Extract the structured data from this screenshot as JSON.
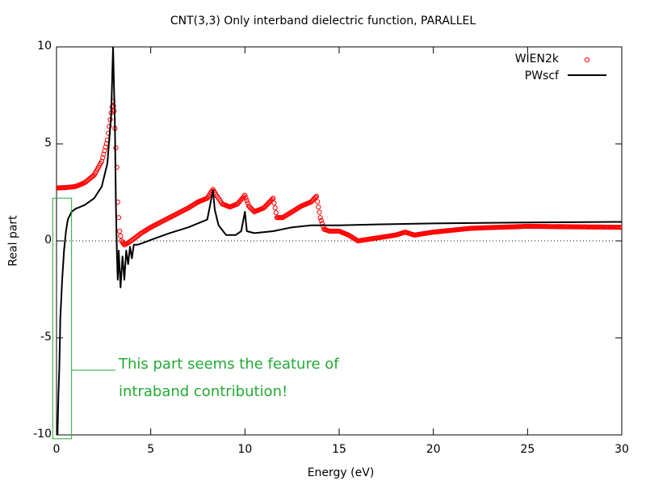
{
  "chart_data": {
    "type": "line",
    "title": "CNT(3,3) Only interband dielectric function, PARALLEL",
    "xlabel": "Energy (eV)",
    "ylabel": "Real part",
    "xlim": [
      0,
      30
    ],
    "ylim": [
      -10,
      10
    ],
    "xticks": [
      "0",
      "5",
      "10",
      "15",
      "20",
      "25",
      "30"
    ],
    "yticks": [
      "-10",
      "-5",
      "0",
      "5",
      "10"
    ],
    "grid": false,
    "zero_line": "dotted",
    "legend_position": "top-right",
    "series": [
      {
        "name": "WIEN2k",
        "style": "markers-open-circle",
        "color": "#ff0000",
        "points": [
          [
            -0.1,
            2.72
          ],
          [
            0.5,
            2.75
          ],
          [
            1.0,
            2.8
          ],
          [
            1.5,
            3.0
          ],
          [
            2.0,
            3.4
          ],
          [
            2.4,
            4.1
          ],
          [
            2.7,
            5.2
          ],
          [
            2.9,
            6.6
          ],
          [
            3.0,
            7.2
          ],
          [
            3.06,
            6.7
          ],
          [
            3.1,
            5.8
          ],
          [
            3.15,
            4.8
          ],
          [
            3.2,
            3.8
          ],
          [
            3.25,
            2.0
          ],
          [
            3.3,
            1.2
          ],
          [
            3.35,
            0.5
          ],
          [
            3.45,
            0.0
          ],
          [
            3.6,
            -0.2
          ],
          [
            3.8,
            -0.1
          ],
          [
            4.1,
            0.1
          ],
          [
            4.5,
            0.4
          ],
          [
            5.0,
            0.7
          ],
          [
            6.0,
            1.2
          ],
          [
            7.0,
            1.7
          ],
          [
            7.5,
            2.0
          ],
          [
            8.0,
            2.2
          ],
          [
            8.3,
            2.65
          ],
          [
            8.45,
            2.4
          ],
          [
            8.8,
            1.9
          ],
          [
            9.2,
            1.75
          ],
          [
            9.6,
            1.9
          ],
          [
            10.0,
            2.35
          ],
          [
            10.2,
            1.8
          ],
          [
            10.5,
            1.5
          ],
          [
            11.0,
            1.7
          ],
          [
            11.5,
            2.2
          ],
          [
            11.7,
            1.2
          ],
          [
            12.0,
            1.2
          ],
          [
            12.5,
            1.5
          ],
          [
            13.0,
            1.8
          ],
          [
            13.5,
            2.0
          ],
          [
            13.8,
            2.3
          ],
          [
            14.0,
            1.2
          ],
          [
            14.2,
            0.6
          ],
          [
            14.5,
            0.5
          ],
          [
            15.0,
            0.5
          ],
          [
            15.5,
            0.3
          ],
          [
            16.0,
            0.0
          ],
          [
            17.0,
            0.15
          ],
          [
            18.0,
            0.3
          ],
          [
            18.5,
            0.45
          ],
          [
            19.0,
            0.3
          ],
          [
            20.0,
            0.45
          ],
          [
            22.0,
            0.65
          ],
          [
            25.0,
            0.75
          ],
          [
            30.0,
            0.7
          ]
        ]
      },
      {
        "name": "PWscf",
        "style": "line",
        "color": "#000000",
        "points": [
          [
            0.05,
            -10.0
          ],
          [
            0.1,
            -8.0
          ],
          [
            0.15,
            -6.5
          ],
          [
            0.2,
            -4.0
          ],
          [
            0.3,
            -2.0
          ],
          [
            0.4,
            -0.5
          ],
          [
            0.5,
            0.5
          ],
          [
            0.6,
            1.1
          ],
          [
            0.8,
            1.5
          ],
          [
            1.0,
            1.65
          ],
          [
            1.5,
            1.85
          ],
          [
            2.0,
            2.2
          ],
          [
            2.4,
            2.8
          ],
          [
            2.7,
            4.0
          ],
          [
            2.9,
            6.5
          ],
          [
            3.0,
            10.0
          ],
          [
            3.1,
            6.0
          ],
          [
            3.15,
            2.0
          ],
          [
            3.2,
            -0.5
          ],
          [
            3.25,
            -2.0
          ],
          [
            3.3,
            -0.5
          ],
          [
            3.4,
            -2.4
          ],
          [
            3.5,
            -0.8
          ],
          [
            3.6,
            -2.0
          ],
          [
            3.7,
            -0.5
          ],
          [
            3.8,
            -1.2
          ],
          [
            3.9,
            -0.3
          ],
          [
            4.0,
            -0.9
          ],
          [
            4.1,
            -0.2
          ],
          [
            4.3,
            -0.2
          ],
          [
            4.6,
            -0.1
          ],
          [
            5.0,
            0.05
          ],
          [
            6.0,
            0.4
          ],
          [
            7.0,
            0.7
          ],
          [
            8.0,
            1.1
          ],
          [
            8.3,
            2.6
          ],
          [
            8.4,
            1.6
          ],
          [
            8.6,
            0.8
          ],
          [
            9.0,
            0.3
          ],
          [
            9.5,
            0.3
          ],
          [
            9.8,
            0.5
          ],
          [
            10.0,
            1.5
          ],
          [
            10.1,
            0.5
          ],
          [
            10.5,
            0.4
          ],
          [
            11.5,
            0.5
          ],
          [
            12.5,
            0.7
          ],
          [
            13.5,
            0.8
          ],
          [
            14.0,
            0.8
          ],
          [
            15.0,
            0.8
          ],
          [
            17.0,
            0.85
          ],
          [
            20.0,
            0.9
          ],
          [
            25.0,
            0.95
          ],
          [
            30.0,
            0.98
          ]
        ]
      }
    ],
    "annotation": {
      "line1": "This part seems the feature of",
      "line2": "intraband contribution!",
      "color": "#22aa33",
      "box_x_range": [
        -0.2,
        0.8
      ],
      "box_y_range": [
        -10.2,
        2.2
      ]
    }
  }
}
